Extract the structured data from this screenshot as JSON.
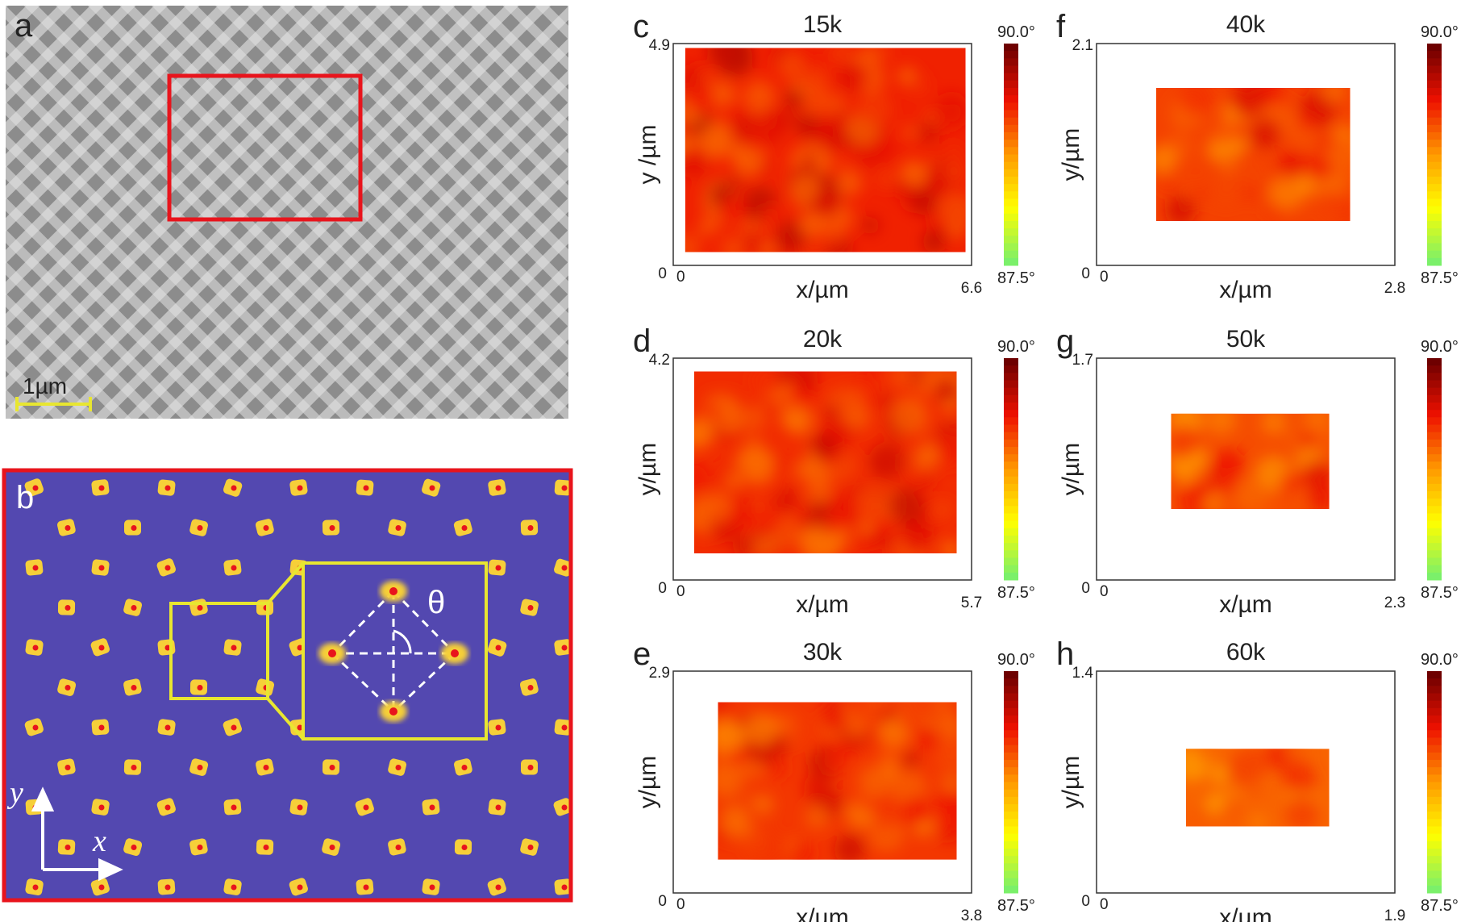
{
  "panel_a": {
    "label": "a",
    "scale_bar": "1µm"
  },
  "panel_b": {
    "label": "b",
    "angle_symbol": "θ",
    "axis_x": "x",
    "axis_y": "y"
  },
  "colormap": {
    "min_label": "87.5°",
    "max_label": "90.0°",
    "colors": [
      "#7bf06a",
      "#ffff00",
      "#ff9900",
      "#ee1100",
      "#6e0000"
    ]
  },
  "colors": {
    "lattice_bg": "#5348b0",
    "spot": "#f6cf39",
    "dot": "#e8141c",
    "highlight_box": "#e8e630",
    "selection_box": "#e8141c"
  },
  "maps": [
    {
      "label": "c",
      "title": "15k",
      "y_max": "4.9",
      "x_max": "6.6",
      "origin": "0",
      "xlabel": "x/µm",
      "ylabel": "y /µm",
      "fill": {
        "start": 0.04,
        "end": 0.98,
        "top": 0.02,
        "bottom": 0.94
      },
      "level": 0.72
    },
    {
      "label": "d",
      "title": "20k",
      "y_max": "4.2",
      "x_max": "5.7",
      "origin": "0",
      "xlabel": "x/µm",
      "ylabel": "y/µm",
      "fill": {
        "start": 0.07,
        "end": 0.95,
        "top": 0.06,
        "bottom": 0.88
      },
      "level": 0.7
    },
    {
      "label": "e",
      "title": "30k",
      "y_max": "2.9",
      "x_max": "3.8",
      "origin": "0",
      "xlabel": "x/µm",
      "ylabel": "y/µm",
      "fill": {
        "start": 0.15,
        "end": 0.95,
        "top": 0.14,
        "bottom": 0.85
      },
      "level": 0.68
    },
    {
      "label": "f",
      "title": "40k",
      "y_max": "2.1",
      "x_max": "2.8",
      "origin": "0",
      "xlabel": "x/µm",
      "ylabel": "y/µm",
      "fill": {
        "start": 0.2,
        "end": 0.85,
        "top": 0.2,
        "bottom": 0.8
      },
      "level": 0.66
    },
    {
      "label": "g",
      "title": "50k",
      "y_max": "1.7",
      "x_max": "2.3",
      "origin": "0",
      "xlabel": "x/µm",
      "ylabel": "y/µm",
      "fill": {
        "start": 0.25,
        "end": 0.78,
        "top": 0.25,
        "bottom": 0.68
      },
      "level": 0.64
    },
    {
      "label": "h",
      "title": "60k",
      "y_max": "1.4",
      "x_max": "1.9",
      "origin": "0",
      "xlabel": "x/µm",
      "ylabel": "y/µm",
      "fill": {
        "start": 0.3,
        "end": 0.78,
        "top": 0.35,
        "bottom": 0.7
      },
      "level": 0.6
    }
  ]
}
